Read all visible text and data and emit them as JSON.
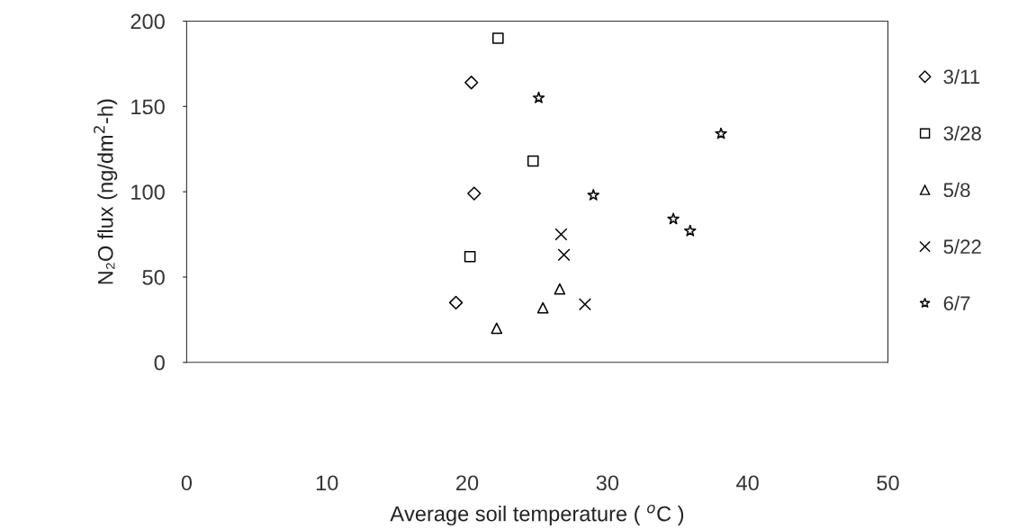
{
  "chart_data": {
    "type": "scatter",
    "xlabel": "Average soil temperature ( $^{o}$C )",
    "ylabel": "N₂O flux (ng/dm$^{2}$-h)",
    "xlim": [
      0,
      50
    ],
    "xticks": [
      0,
      10,
      20,
      30,
      40,
      50
    ],
    "ylim": [
      0,
      200
    ],
    "yticks": [
      0,
      50,
      100,
      150,
      200
    ],
    "grid": false,
    "legend": "right",
    "series": [
      {
        "name": "3/11",
        "color": "#000000",
        "marker": "diamond",
        "x": [
          20.3,
          20.5,
          19.2
        ],
        "values": [
          164,
          99,
          35
        ]
      },
      {
        "name": "3/28",
        "color": "#000000",
        "marker": "square",
        "x": [
          22.2,
          24.7,
          20.2
        ],
        "values": [
          190,
          118,
          62
        ]
      },
      {
        "name": "5/8",
        "color": "#000000",
        "marker": "triangle",
        "x": [
          22.1,
          25.4,
          26.6
        ],
        "values": [
          20,
          32,
          43
        ]
      },
      {
        "name": "5/22",
        "color": "#000000",
        "marker": "cross",
        "x": [
          26.7,
          26.9,
          28.4
        ],
        "values": [
          75,
          63,
          34
        ]
      },
      {
        "name": "6/7",
        "color": "#000000",
        "marker": "star",
        "x": [
          25.1,
          29.0,
          34.7,
          35.9,
          38.1
        ],
        "values": [
          155,
          98,
          84,
          77,
          134
        ]
      }
    ]
  }
}
